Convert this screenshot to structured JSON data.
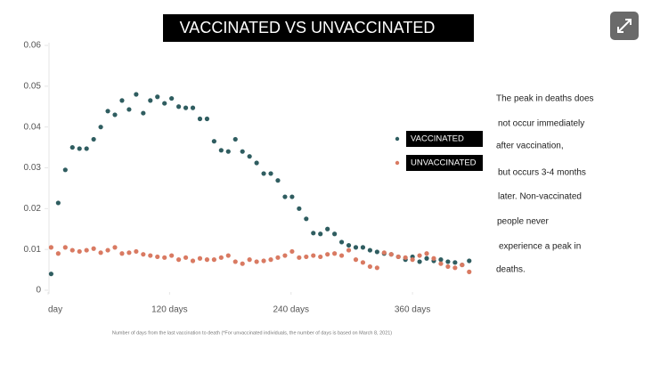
{
  "chart_data": {
    "type": "scatter",
    "title": "VACCINATED VS UNVACCINATED",
    "x_label": "Number of days from the last vaccination to death (*For unvaccinated individuals, the number of days is based on March 8, 2021)",
    "x": [
      3,
      10,
      17,
      24,
      31,
      38,
      45,
      52,
      59,
      66,
      73,
      80,
      87,
      94,
      101,
      108,
      115,
      122,
      129,
      136,
      143,
      150,
      157,
      164,
      171,
      178,
      185,
      192,
      199,
      206,
      213,
      220,
      227,
      234,
      241,
      248,
      255,
      262,
      269,
      276,
      283,
      290,
      297,
      304,
      311,
      318,
      325,
      332,
      339,
      346,
      353,
      360,
      367,
      374,
      381,
      388,
      395,
      402,
      409,
      416
    ],
    "series": [
      {
        "name": "VACCINATED",
        "color": "#2f5d60",
        "values": [
          0.004,
          0.0214,
          0.0295,
          0.035,
          0.0347,
          0.0347,
          0.037,
          0.04,
          0.0439,
          0.043,
          0.0465,
          0.0443,
          0.048,
          0.0434,
          0.0465,
          0.0474,
          0.0458,
          0.047,
          0.045,
          0.0447,
          0.0447,
          0.042,
          0.042,
          0.0365,
          0.0343,
          0.034,
          0.037,
          0.034,
          0.0328,
          0.0312,
          0.0286,
          0.0286,
          0.0269,
          0.0229,
          0.0229,
          0.02,
          0.0175,
          0.014,
          0.0138,
          0.015,
          0.0138,
          0.0118,
          0.011,
          0.0105,
          0.0105,
          0.0098,
          0.0094,
          0.009,
          0.0088,
          0.0082,
          0.0075,
          0.0082,
          0.007,
          0.0078,
          0.0072,
          0.0075,
          0.007,
          0.0068,
          0.0062,
          0.0072
        ]
      },
      {
        "name": "UNVACCINATED",
        "color": "#d97a62",
        "values": [
          0.0105,
          0.009,
          0.0105,
          0.0098,
          0.0095,
          0.0098,
          0.0102,
          0.0092,
          0.0098,
          0.0105,
          0.009,
          0.0092,
          0.0095,
          0.0088,
          0.0085,
          0.0082,
          0.008,
          0.0085,
          0.0075,
          0.008,
          0.0072,
          0.0078,
          0.0075,
          0.0075,
          0.008,
          0.0085,
          0.007,
          0.0065,
          0.0075,
          0.007,
          0.0072,
          0.0075,
          0.008,
          0.0085,
          0.0095,
          0.008,
          0.0082,
          0.0085,
          0.0082,
          0.0088,
          0.009,
          0.0085,
          0.0098,
          0.0075,
          0.0068,
          0.0058,
          0.0055,
          0.0092,
          0.0088,
          0.0082,
          0.008,
          0.0075,
          0.0085,
          0.009,
          0.0078,
          0.0065,
          0.0058,
          0.0055,
          0.0062,
          0.0045
        ]
      }
    ],
    "xlim": [
      0,
      425
    ],
    "xticks": [
      {
        "value": 0,
        "label": "day"
      },
      {
        "value": 120,
        "label": "120 days"
      },
      {
        "value": 240,
        "label": "240 days"
      },
      {
        "value": 360,
        "label": "360 days"
      }
    ],
    "ylim": [
      0,
      0.06
    ],
    "yticks": [
      0,
      0.01,
      0.02,
      0.03,
      0.04,
      0.05,
      0.06
    ],
    "grid": false,
    "legend": "right",
    "annotations": [
      "The peak in deaths does",
      "not occur immediately",
      "after vaccination,",
      "but occurs 3-4 months",
      "later. Non-vaccinated",
      "people never",
      "experience a peak in",
      "deaths."
    ]
  }
}
